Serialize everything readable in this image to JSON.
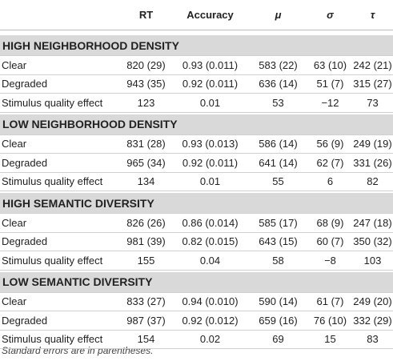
{
  "table": {
    "columns": [
      "RT",
      "Accuracy",
      "μ",
      "σ",
      "τ"
    ],
    "sections": [
      {
        "title": "HIGH NEIGHBORHOOD DENSITY",
        "rows": [
          [
            "Clear",
            "820 (29)",
            "0.93 (0.011)",
            "583 (22)",
            "63 (10)",
            "242 (21)"
          ],
          [
            "Degraded",
            "943 (35)",
            "0.92 (0.011)",
            "636 (14)",
            "51 (7)",
            "315 (27)"
          ],
          [
            "Stimulus quality effect",
            "123",
            "0.01",
            "53",
            "−12",
            "73"
          ]
        ]
      },
      {
        "title": "LOW NEIGHBORHOOD DENSITY",
        "rows": [
          [
            "Clear",
            "831 (28)",
            "0.93 (0.013)",
            "586 (14)",
            "56 (9)",
            "249 (19)"
          ],
          [
            "Degraded",
            "965 (34)",
            "0.92 (0.011)",
            "641 (14)",
            "62 (7)",
            "331 (26)"
          ],
          [
            "Stimulus quality effect",
            "134",
            "0.01",
            "55",
            "6",
            "82"
          ]
        ]
      },
      {
        "title": "HIGH SEMANTIC DIVERSITY",
        "rows": [
          [
            "Clear",
            "826 (26)",
            "0.86 (0.014)",
            "585 (17)",
            "68 (9)",
            "247 (18)"
          ],
          [
            "Degraded",
            "981 (39)",
            "0.82 (0.015)",
            "643 (15)",
            "60 (7)",
            "350 (32)"
          ],
          [
            "Stimulus quality effect",
            "155",
            "0.04",
            "58",
            "−8",
            "103"
          ]
        ]
      },
      {
        "title": "LOW SEMANTIC DIVERSITY",
        "rows": [
          [
            "Clear",
            "833 (27)",
            "0.94 (0.010)",
            "590 (14)",
            "61 (7)",
            "249 (20)"
          ],
          [
            "Degraded",
            "987 (37)",
            "0.92 (0.012)",
            "659 (16)",
            "76 (10)",
            "332 (29)"
          ],
          [
            "Stimulus quality effect",
            "154",
            "0.02",
            "69",
            "15",
            "83"
          ]
        ]
      }
    ]
  },
  "footnote": "Standard errors are in parentheses."
}
